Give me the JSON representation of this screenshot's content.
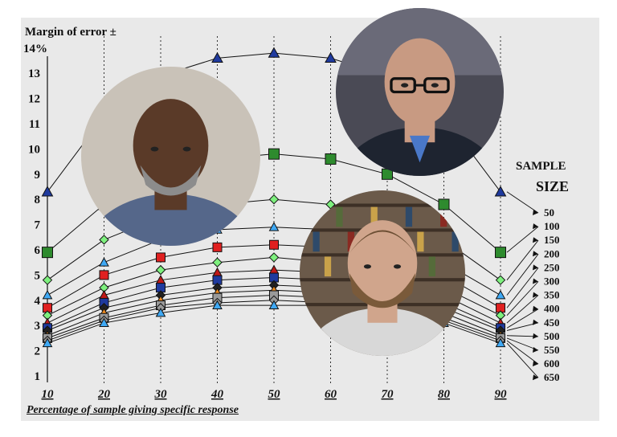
{
  "chart_data": {
    "type": "line",
    "title": "",
    "ylabel": "Margin of error ±",
    "xlabel": "Percentage of sample giving specific response",
    "y_tick_labels": [
      "1",
      "2",
      "3",
      "4",
      "5",
      "6",
      "7",
      "8",
      "9",
      "10",
      "11",
      "12",
      "13",
      "14%"
    ],
    "ylim": [
      1,
      14
    ],
    "x": [
      10,
      20,
      30,
      40,
      50,
      60,
      70,
      80,
      90
    ],
    "x_tick_labels": [
      "10",
      "20",
      "30",
      "40",
      "50",
      "60",
      "70",
      "80",
      "90"
    ],
    "grid": "vertical dotted lines at each x value",
    "legend": {
      "title_line1": "SAMPLE",
      "title_line2": "SIZE",
      "placement": "right",
      "entries": [
        "50",
        "100",
        "150",
        "200",
        "250",
        "300",
        "350",
        "400",
        "450",
        "500",
        "550",
        "600",
        "650"
      ]
    },
    "series": [
      {
        "name": "50",
        "marker": "triangle",
        "color": "#1f3a9e",
        "values": [
          8.3,
          11.3,
          12.9,
          13.6,
          13.8,
          13.6,
          12.9,
          11.3,
          8.3
        ]
      },
      {
        "name": "100",
        "marker": "square",
        "color": "#2e8b2e",
        "values": [
          5.9,
          7.8,
          9.0,
          9.6,
          9.8,
          9.6,
          9.0,
          7.8,
          5.9
        ]
      },
      {
        "name": "150",
        "marker": "diamond",
        "color": "#7ef07e",
        "values": [
          4.8,
          6.4,
          7.3,
          7.8,
          8.0,
          7.8,
          7.3,
          6.4,
          4.8
        ]
      },
      {
        "name": "200",
        "marker": "triangle",
        "color": "#3fa9f5",
        "values": [
          4.2,
          5.5,
          6.4,
          6.8,
          6.9,
          6.8,
          6.4,
          5.5,
          4.2
        ]
      },
      {
        "name": "250",
        "marker": "square",
        "color": "#e02020",
        "values": [
          3.7,
          5.0,
          5.7,
          6.1,
          6.2,
          6.1,
          5.7,
          5.0,
          3.7
        ]
      },
      {
        "name": "300",
        "marker": "diamond",
        "color": "#7ef07e",
        "values": [
          3.4,
          4.5,
          5.2,
          5.5,
          5.7,
          5.5,
          5.2,
          4.5,
          3.4
        ]
      },
      {
        "name": "350",
        "marker": "triangle",
        "color": "#c01818",
        "values": [
          3.1,
          4.2,
          4.8,
          5.1,
          5.2,
          5.1,
          4.8,
          4.2,
          3.1
        ]
      },
      {
        "name": "400",
        "marker": "square",
        "color": "#1f3a9e",
        "values": [
          2.9,
          3.9,
          4.5,
          4.8,
          4.9,
          4.8,
          4.5,
          3.9,
          2.9
        ]
      },
      {
        "name": "450",
        "marker": "diamond",
        "color": "#222222",
        "values": [
          2.8,
          3.7,
          4.2,
          4.5,
          4.6,
          4.5,
          4.2,
          3.7,
          2.8
        ]
      },
      {
        "name": "500",
        "marker": "triangle",
        "color": "#f08a1c",
        "values": [
          2.6,
          3.5,
          4.0,
          4.3,
          4.4,
          4.3,
          4.0,
          3.5,
          2.6
        ]
      },
      {
        "name": "550",
        "marker": "square",
        "color": "#9a9a9a",
        "values": [
          2.5,
          3.3,
          3.8,
          4.1,
          4.2,
          4.1,
          3.8,
          3.3,
          2.5
        ]
      },
      {
        "name": "600",
        "marker": "diamond",
        "color": "#9a9a9a",
        "values": [
          2.4,
          3.2,
          3.7,
          3.9,
          4.0,
          3.9,
          3.7,
          3.2,
          2.4
        ]
      },
      {
        "name": "650",
        "marker": "triangle",
        "color": "#3fa9f5",
        "values": [
          2.3,
          3.1,
          3.5,
          3.8,
          3.8,
          3.8,
          3.5,
          3.1,
          2.3
        ]
      }
    ]
  },
  "photos": [
    {
      "name": "photo-man-gray-sweater",
      "description": "bald man with gray beard in blue sweater looking down",
      "bg": "#c9c2b8",
      "skin": "#5a3a28",
      "clothing": "#55678a"
    },
    {
      "name": "photo-man-glasses-suit",
      "description": "bald man with glasses in dark suit and blue shirt",
      "bg": "#4a4a55",
      "skin": "#c89a82",
      "clothing": "#1e2430"
    },
    {
      "name": "photo-man-bookshelf",
      "description": "man with brown beard in front of bookshelf",
      "bg": "#6b5a4a",
      "skin": "#d0a58c",
      "clothing": "#d8d8d8"
    }
  ]
}
